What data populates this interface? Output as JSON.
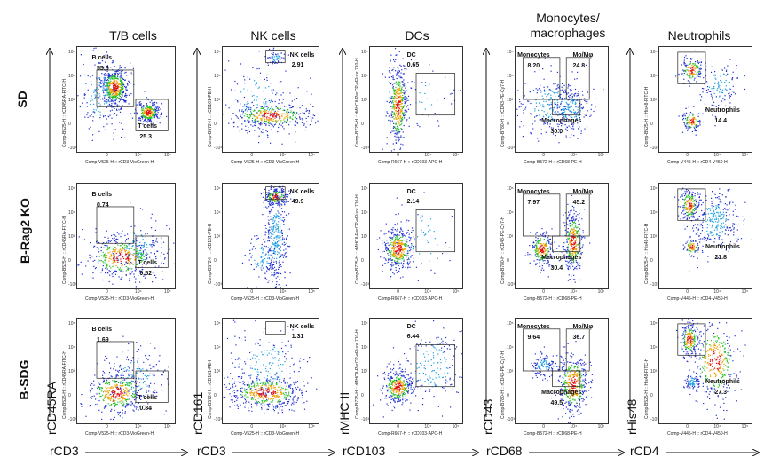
{
  "columns": [
    {
      "title": "T/B cells",
      "side_label": "rCD45RA",
      "bottom_label": "rCD3"
    },
    {
      "title": "NK cells",
      "side_label": "rCD161",
      "bottom_label": "rCD3"
    },
    {
      "title": "DCs",
      "side_label": "rMHC II",
      "bottom_label": "rCD103"
    },
    {
      "title": "Monocytes/\nmacrophages",
      "side_label": "rCD43",
      "bottom_label": "rCD68"
    },
    {
      "title": "Neutrophils",
      "side_label": "rHis48",
      "bottom_label": "rCD4"
    }
  ],
  "rows": [
    {
      "label": "SD"
    },
    {
      "label": "B-Rag2 KO"
    },
    {
      "label": "B-SDG"
    }
  ],
  "axes": {
    "tb": {
      "y": "Comp-B525-H :: rCD45RA-FITC-H",
      "x": "Comp-V525-H :: rCD3-VioGreen-H"
    },
    "nk": {
      "y": "Comp-B572-H :: rCD161-PE-H",
      "x": "Comp-V525-H :: rCD3-VioGreen-H"
    },
    "dc": {
      "y": "Comp-B725-H :: rMHCII-PerCP-eFluor 710-H",
      "x": "Comp-R667-H :: rCD103-APC-H"
    },
    "mono": {
      "y": "Comp-B780-H :: rCD43-PE-Cy7-H",
      "x": "Comp-B572-H :: rCD68-PE-H"
    },
    "neu": {
      "y": "Comp-B525-H :: His48-FITC-H",
      "x": "Comp-V445-H :: rCD4-V450-H"
    }
  },
  "gates": [
    [
      {
        "col": 0,
        "labels": [
          {
            "name": "B cells",
            "value": "55.6"
          },
          {
            "name": "T cells",
            "value": "25.3"
          }
        ]
      },
      {
        "col": 1,
        "labels": [
          {
            "name": "NK cells",
            "value": "2.91"
          }
        ]
      },
      {
        "col": 2,
        "labels": [
          {
            "name": "DC",
            "value": "0.65"
          }
        ]
      },
      {
        "col": 3,
        "labels": [
          {
            "name": "Monocytes",
            "value": "8.20"
          },
          {
            "name": "Mo/Mφ",
            "value": "24.8"
          },
          {
            "name": "Macrophages",
            "value": "30.0"
          }
        ]
      },
      {
        "col": 4,
        "labels": [
          {
            "name": "Neutrophils",
            "value": "14.4"
          }
        ]
      }
    ],
    [
      {
        "col": 0,
        "labels": [
          {
            "name": "B cells",
            "value": "0.74"
          },
          {
            "name": "T cells",
            "value": "0.52"
          }
        ]
      },
      {
        "col": 1,
        "labels": [
          {
            "name": "NK cells",
            "value": "49.9"
          }
        ]
      },
      {
        "col": 2,
        "labels": [
          {
            "name": "DC",
            "value": "2.14"
          }
        ]
      },
      {
        "col": 3,
        "labels": [
          {
            "name": "Monocytes",
            "value": "7.97"
          },
          {
            "name": "Mo/Mφ",
            "value": "45.2"
          },
          {
            "name": "Macrophages",
            "value": "30.4"
          }
        ]
      },
      {
        "col": 4,
        "labels": [
          {
            "name": "Neutrophils",
            "value": "21.8"
          }
        ]
      }
    ],
    [
      {
        "col": 0,
        "labels": [
          {
            "name": "B cells",
            "value": "1.69"
          },
          {
            "name": "T cells",
            "value": "0.84"
          }
        ]
      },
      {
        "col": 1,
        "labels": [
          {
            "name": "NK cells",
            "value": "1.31"
          }
        ]
      },
      {
        "col": 2,
        "labels": [
          {
            "name": "DC",
            "value": "6.44"
          }
        ]
      },
      {
        "col": 3,
        "labels": [
          {
            "name": "Monocytes",
            "value": "9.64"
          },
          {
            "name": "Mo/Mφ",
            "value": "36.7"
          },
          {
            "name": "Macrophages",
            "value": "49.5"
          }
        ]
      },
      {
        "col": 4,
        "labels": [
          {
            "name": "Neutrophils",
            "value": "27.3"
          }
        ]
      }
    ]
  ],
  "ticks": {
    "y": [
      "10⁵",
      "10⁴",
      "10³",
      "0",
      "-10³"
    ],
    "x": [
      "0",
      "10⁴",
      "10⁵"
    ],
    "x_neg": "-10³"
  }
}
